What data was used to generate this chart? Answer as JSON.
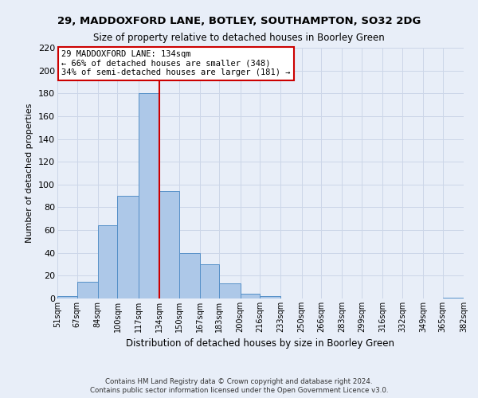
{
  "title1": "29, MADDOXFORD LANE, BOTLEY, SOUTHAMPTON, SO32 2DG",
  "title2": "Size of property relative to detached houses in Boorley Green",
  "xlabel": "Distribution of detached houses by size in Boorley Green",
  "ylabel": "Number of detached properties",
  "bin_edges": [
    51,
    67,
    84,
    100,
    117,
    134,
    150,
    167,
    183,
    200,
    216,
    233,
    250,
    266,
    283,
    299,
    316,
    332,
    349,
    365,
    382
  ],
  "bar_heights": [
    2,
    15,
    64,
    90,
    180,
    94,
    40,
    30,
    13,
    4,
    2,
    0,
    0,
    0,
    0,
    0,
    0,
    0,
    0,
    1
  ],
  "bar_color": "#adc8e8",
  "bar_edge_color": "#5590c8",
  "vline_x": 134,
  "vline_color": "#cc0000",
  "annotation_title": "29 MADDOXFORD LANE: 134sqm",
  "annotation_line1": "← 66% of detached houses are smaller (348)",
  "annotation_line2": "34% of semi-detached houses are larger (181) →",
  "annotation_box_color": "#ffffff",
  "annotation_box_edge_color": "#cc0000",
  "ylim": [
    0,
    220
  ],
  "yticks": [
    0,
    20,
    40,
    60,
    80,
    100,
    120,
    140,
    160,
    180,
    200,
    220
  ],
  "tick_labels": [
    "51sqm",
    "67sqm",
    "84sqm",
    "100sqm",
    "117sqm",
    "134sqm",
    "150sqm",
    "167sqm",
    "183sqm",
    "200sqm",
    "216sqm",
    "233sqm",
    "250sqm",
    "266sqm",
    "283sqm",
    "299sqm",
    "316sqm",
    "332sqm",
    "349sqm",
    "365sqm",
    "382sqm"
  ],
  "grid_color": "#ccd6e8",
  "bg_color": "#e8eef8",
  "footnote1": "Contains HM Land Registry data © Crown copyright and database right 2024.",
  "footnote2": "Contains public sector information licensed under the Open Government Licence v3.0."
}
